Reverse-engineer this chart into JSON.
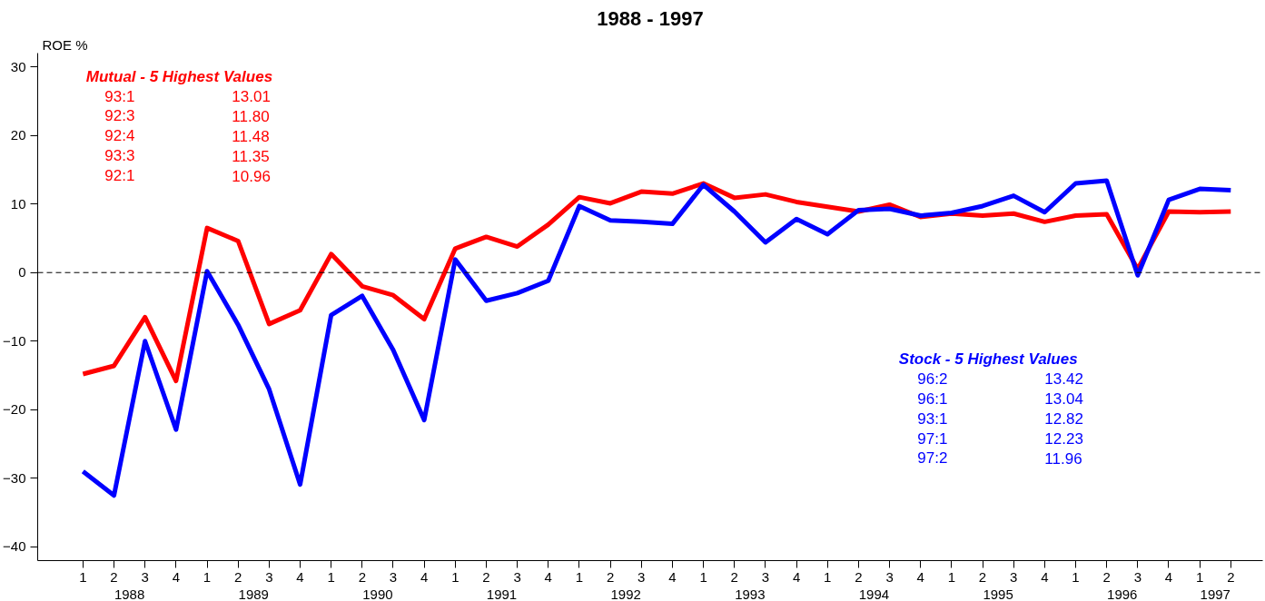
{
  "chart_data": {
    "type": "line",
    "title": "1988 - 1997",
    "ylabel": "ROE %",
    "categories": [
      "1",
      "2",
      "3",
      "4",
      "1",
      "2",
      "3",
      "4",
      "1",
      "2",
      "3",
      "4",
      "1",
      "2",
      "3",
      "4",
      "1",
      "2",
      "3",
      "4",
      "1",
      "2",
      "3",
      "4",
      "1",
      "2",
      "3",
      "4",
      "1",
      "2",
      "3",
      "4",
      "1",
      "2",
      "3",
      "4",
      "1",
      "2"
    ],
    "series": [
      {
        "color": "#ff0000",
        "values": [
          -14.8,
          -13.6,
          -6.5,
          -15.8,
          6.5,
          4.6,
          -7.5,
          -5.5,
          2.7,
          -2.0,
          -3.3,
          -6.8,
          3.5,
          5.2,
          3.8,
          7.0,
          11.0,
          10.1,
          11.8,
          11.5,
          13.0,
          10.9,
          11.4,
          10.3,
          9.6,
          8.9,
          9.9,
          8.1,
          8.6,
          8.3,
          8.6,
          7.4,
          8.3,
          8.5,
          0.5,
          8.9,
          8.8,
          8.9
        ]
      },
      {
        "color": "#0000ff",
        "values": [
          -29.0,
          -32.5,
          -10.0,
          -22.9,
          0.2,
          -7.6,
          -17.0,
          -30.9,
          -6.2,
          -3.4,
          -11.3,
          -21.5,
          1.9,
          -4.1,
          -3.0,
          -1.2,
          9.7,
          7.6,
          7.4,
          7.1,
          12.8,
          8.9,
          4.4,
          7.8,
          5.6,
          9.1,
          9.3,
          8.3,
          8.7,
          9.7,
          11.2,
          8.8,
          13.0,
          13.4,
          -0.4,
          10.6,
          12.2,
          12.0
        ]
      }
    ],
    "ylim": [
      -42,
      32
    ],
    "yticks": [
      -40,
      -30,
      -20,
      -10,
      0,
      10,
      20,
      30
    ],
    "grid": false,
    "marker": "none",
    "line_style": "solid",
    "ref_lines": [
      {
        "axis": "y",
        "value": 0,
        "color": "#000000",
        "line_style": "dashed"
      }
    ],
    "annotations": [
      "Mutual - 5 Highest Values",
      "93:1",
      "13.01",
      "92:3",
      "11.80",
      "92:4",
      "11.48",
      "93:3",
      "11.35",
      "92:1",
      "10.96",
      "Stock - 5 Highest Values",
      "96:2",
      "13.42",
      "96:1",
      "13.04",
      "93:1",
      "12.82",
      "97:1",
      "12.23",
      "97:2",
      "11.96",
      "1988",
      "1989",
      "1990",
      "1991",
      "1992",
      "1993",
      "1994",
      "1995",
      "1996",
      "1997"
    ]
  }
}
